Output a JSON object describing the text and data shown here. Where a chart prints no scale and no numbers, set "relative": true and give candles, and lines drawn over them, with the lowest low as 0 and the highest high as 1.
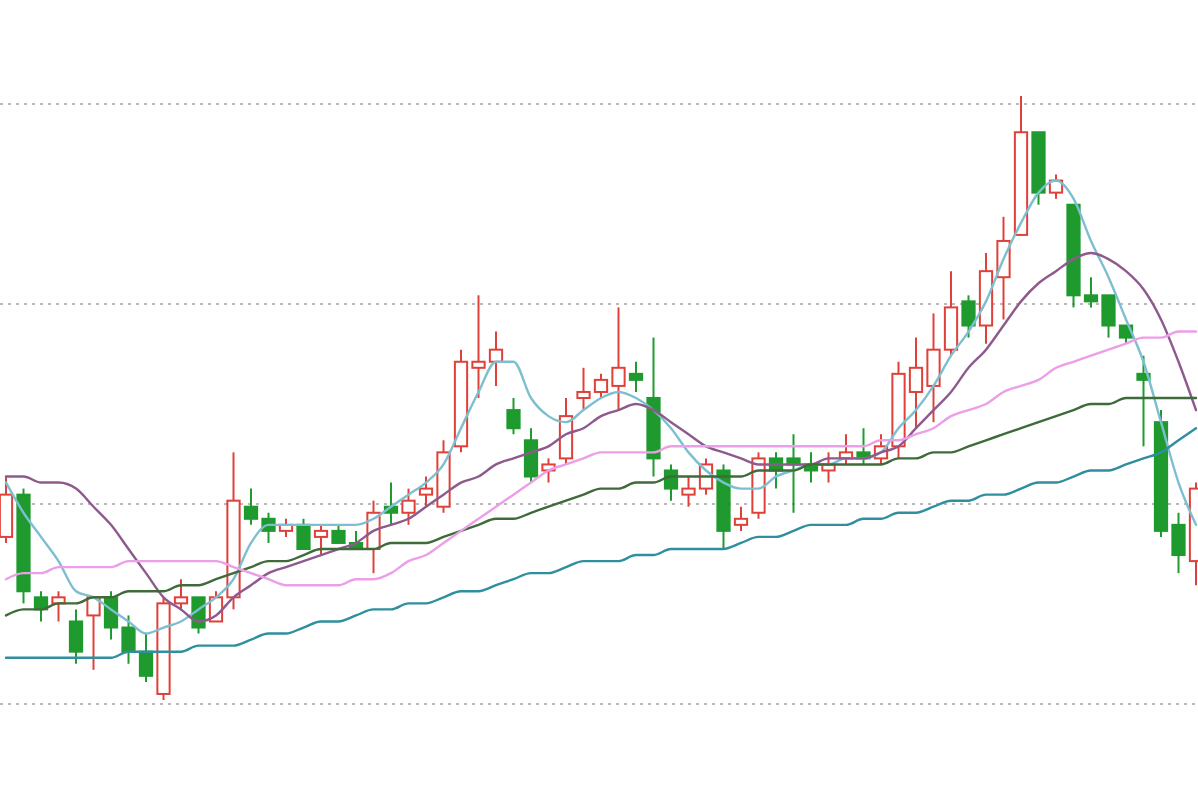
{
  "chart_data": {
    "type": "candlestick",
    "relative": true,
    "grid": true,
    "categories": [
      null,
      null,
      null,
      null,
      null,
      null,
      null,
      null,
      null,
      null,
      null,
      null,
      null,
      null,
      null,
      null,
      null,
      null,
      null,
      null,
      null,
      null,
      null,
      null,
      null,
      null,
      null,
      null,
      null,
      null,
      null,
      null,
      null,
      null,
      null,
      null,
      null,
      null,
      null,
      null,
      null,
      null,
      null,
      null,
      null,
      null,
      null,
      null,
      null,
      null,
      null,
      null,
      null,
      null,
      null,
      null,
      null,
      null,
      null,
      null,
      null,
      null,
      null,
      null,
      null,
      null,
      null,
      null,
      null
    ],
    "colors": [
      "#e0403a",
      "#1f9a2e",
      "#1f9a2e",
      "#e0403a",
      "#1f9a2e",
      "#e0403a",
      "#1f9a2e",
      "#1f9a2e",
      "#1f9a2e",
      "#e0403a",
      "#e0403a",
      "#1f9a2e",
      "#e0403a",
      "#e0403a",
      "#1f9a2e",
      "#1f9a2e",
      "#e0403a",
      "#1f9a2e",
      "#e0403a",
      "#1f9a2e",
      "#1f9a2e",
      "#e0403a",
      "#1f9a2e",
      "#e0403a",
      "#e0403a",
      "#e0403a",
      "#e0403a",
      "#e0403a",
      "#e0403a",
      "#1f9a2e",
      "#1f9a2e",
      "#e0403a",
      "#e0403a",
      "#e0403a",
      "#e0403a",
      "#e0403a",
      "#1f9a2e",
      "#1f9a2e",
      "#1f9a2e",
      "#e0403a",
      "#e0403a",
      "#1f9a2e",
      "#e0403a",
      "#e0403a",
      "#1f9a2e",
      "#1f9a2e",
      "#1f9a2e",
      "#e0403a",
      "#e0403a",
      "#1f9a2e",
      "#e0403a",
      "#e0403a",
      "#e0403a",
      "#e0403a",
      "#e0403a",
      "#1f9a2e",
      "#e0403a",
      "#e0403a",
      "#e0403a",
      "#1f9a2e",
      "#e0403a",
      "#1f9a2e",
      "#1f9a2e",
      "#1f9a2e",
      "#1f9a2e",
      "#1f9a2e",
      "#1f9a2e",
      "#1f9a2e",
      "#e0403a"
    ],
    "ohlc": [
      [
        0.27,
        0.37,
        0.26,
        0.34
      ],
      [
        0.34,
        0.35,
        0.16,
        0.18
      ],
      [
        0.17,
        0.18,
        0.13,
        0.15
      ],
      [
        0.16,
        0.18,
        0.13,
        0.17
      ],
      [
        0.13,
        0.15,
        0.06,
        0.08
      ],
      [
        0.14,
        0.17,
        0.05,
        0.17
      ],
      [
        0.17,
        0.18,
        0.1,
        0.12
      ],
      [
        0.12,
        0.14,
        0.06,
        0.08
      ],
      [
        0.08,
        0.11,
        0.03,
        0.04
      ],
      [
        0.01,
        0.17,
        0,
        0.16
      ],
      [
        0.16,
        0.2,
        0.15,
        0.17
      ],
      [
        0.17,
        0.17,
        0.11,
        0.12
      ],
      [
        0.13,
        0.18,
        0.13,
        0.17
      ],
      [
        0.17,
        0.41,
        0.15,
        0.33
      ],
      [
        0.32,
        0.35,
        0.29,
        0.3
      ],
      [
        0.3,
        0.31,
        0.26,
        0.28
      ],
      [
        0.28,
        0.3,
        0.27,
        0.29
      ],
      [
        0.29,
        0.3,
        0.25,
        0.25
      ],
      [
        0.27,
        0.29,
        0.24,
        0.28
      ],
      [
        0.28,
        0.29,
        0.26,
        0.26
      ],
      [
        0.26,
        0.28,
        0.25,
        0.25
      ],
      [
        0.25,
        0.33,
        0.21,
        0.31
      ],
      [
        0.32,
        0.36,
        0.29,
        0.31
      ],
      [
        0.31,
        0.35,
        0.29,
        0.33
      ],
      [
        0.34,
        0.37,
        0.32,
        0.35
      ],
      [
        0.32,
        0.43,
        0.31,
        0.41
      ],
      [
        0.42,
        0.58,
        0.41,
        0.56
      ],
      [
        0.55,
        0.67,
        0.5,
        0.56
      ],
      [
        0.56,
        0.61,
        0.52,
        0.58
      ],
      [
        0.48,
        0.5,
        0.44,
        0.45
      ],
      [
        0.43,
        0.45,
        0.36,
        0.37
      ],
      [
        0.38,
        0.4,
        0.36,
        0.39
      ],
      [
        0.4,
        0.5,
        0.39,
        0.47
      ],
      [
        0.5,
        0.55,
        0.48,
        0.51
      ],
      [
        0.51,
        0.54,
        0.5,
        0.53
      ],
      [
        0.52,
        0.65,
        0.48,
        0.55
      ],
      [
        0.54,
        0.56,
        0.51,
        0.53
      ],
      [
        0.5,
        0.6,
        0.37,
        0.4
      ],
      [
        0.38,
        0.39,
        0.33,
        0.35
      ],
      [
        0.34,
        0.37,
        0.32,
        0.35
      ],
      [
        0.35,
        0.4,
        0.34,
        0.39
      ],
      [
        0.38,
        0.39,
        0.25,
        0.28
      ],
      [
        0.29,
        0.32,
        0.28,
        0.3
      ],
      [
        0.31,
        0.41,
        0.3,
        0.4
      ],
      [
        0.4,
        0.41,
        0.35,
        0.38
      ],
      [
        0.4,
        0.44,
        0.31,
        0.39
      ],
      [
        0.39,
        0.41,
        0.36,
        0.38
      ],
      [
        0.38,
        0.41,
        0.36,
        0.39
      ],
      [
        0.4,
        0.44,
        0.39,
        0.41
      ],
      [
        0.41,
        0.45,
        0.39,
        0.4
      ],
      [
        0.4,
        0.44,
        0.39,
        0.42
      ],
      [
        0.42,
        0.56,
        0.4,
        0.54
      ],
      [
        0.51,
        0.6,
        0.45,
        0.55
      ],
      [
        0.52,
        0.64,
        0.46,
        0.58
      ],
      [
        0.58,
        0.71,
        0.57,
        0.65
      ],
      [
        0.66,
        0.67,
        0.6,
        0.62
      ],
      [
        0.62,
        0.74,
        0.59,
        0.71
      ],
      [
        0.7,
        0.8,
        0.63,
        0.76
      ],
      [
        0.77,
        1,
        0.77,
        0.94
      ],
      [
        0.94,
        0.94,
        0.82,
        0.84
      ],
      [
        0.84,
        0.87,
        0.83,
        0.86
      ],
      [
        0.82,
        0.82,
        0.65,
        0.67
      ],
      [
        0.67,
        0.7,
        0.65,
        0.66
      ],
      [
        0.67,
        0.67,
        0.6,
        0.62
      ],
      [
        0.62,
        0.62,
        0.59,
        0.6
      ],
      [
        0.54,
        0.57,
        0.42,
        0.53
      ],
      [
        0.46,
        0.48,
        0.27,
        0.28
      ],
      [
        0.29,
        0.31,
        0.21,
        0.24
      ],
      [
        0.23,
        0.36,
        0.19,
        0.35
      ]
    ],
    "series": [
      {
        "type": "line",
        "color": "#7dbfd0",
        "values": [
          0.36,
          0.31,
          0.27,
          0.23,
          0.18,
          0.17,
          0.15,
          0.13,
          0.11,
          0.12,
          0.13,
          0.15,
          0.17,
          0.2,
          0.26,
          0.29,
          0.29,
          0.29,
          0.29,
          0.29,
          0.29,
          0.3,
          0.32,
          0.34,
          0.36,
          0.39,
          0.45,
          0.51,
          0.56,
          0.56,
          0.5,
          0.47,
          0.46,
          0.48,
          0.5,
          0.51,
          0.5,
          0.48,
          0.45,
          0.41,
          0.38,
          0.36,
          0.35,
          0.35,
          0.37,
          0.38,
          0.39,
          0.39,
          0.4,
          0.4,
          0.41,
          0.45,
          0.48,
          0.52,
          0.57,
          0.61,
          0.66,
          0.73,
          0.79,
          0.84,
          0.86,
          0.83,
          0.76,
          0.7,
          0.63,
          0.56,
          0.46,
          0.36,
          0.29
        ]
      },
      {
        "type": "line",
        "color": "#8e5a8e",
        "values": [
          0.37,
          0.37,
          0.36,
          0.36,
          0.35,
          0.32,
          0.29,
          0.25,
          0.21,
          0.17,
          0.15,
          0.13,
          0.14,
          0.17,
          0.19,
          0.21,
          0.22,
          0.23,
          0.24,
          0.25,
          0.26,
          0.28,
          0.29,
          0.3,
          0.32,
          0.34,
          0.36,
          0.37,
          0.39,
          0.4,
          0.41,
          0.42,
          0.44,
          0.45,
          0.47,
          0.48,
          0.49,
          0.48,
          0.46,
          0.44,
          0.42,
          0.41,
          0.4,
          0.39,
          0.39,
          0.39,
          0.39,
          0.4,
          0.4,
          0.4,
          0.41,
          0.42,
          0.45,
          0.48,
          0.51,
          0.55,
          0.58,
          0.62,
          0.66,
          0.69,
          0.71,
          0.73,
          0.74,
          0.73,
          0.71,
          0.68,
          0.63,
          0.56,
          0.48
        ]
      },
      {
        "type": "line",
        "color": "#3f6b3a",
        "values": [
          0.14,
          0.15,
          0.15,
          0.16,
          0.16,
          0.17,
          0.17,
          0.18,
          0.18,
          0.18,
          0.19,
          0.19,
          0.2,
          0.21,
          0.22,
          0.23,
          0.23,
          0.24,
          0.25,
          0.25,
          0.25,
          0.25,
          0.26,
          0.26,
          0.26,
          0.27,
          0.28,
          0.29,
          0.3,
          0.3,
          0.31,
          0.32,
          0.33,
          0.34,
          0.35,
          0.35,
          0.36,
          0.36,
          0.37,
          0.37,
          0.37,
          0.37,
          0.37,
          0.38,
          0.38,
          0.38,
          0.39,
          0.39,
          0.39,
          0.39,
          0.39,
          0.4,
          0.4,
          0.41,
          0.41,
          0.42,
          0.43,
          0.44,
          0.45,
          0.46,
          0.47,
          0.48,
          0.49,
          0.49,
          0.5,
          0.5,
          0.5,
          0.5,
          0.5
        ]
      },
      {
        "type": "line",
        "color": "#ec9ee8",
        "values": [
          0.2,
          0.21,
          0.21,
          0.22,
          0.22,
          0.22,
          0.22,
          0.23,
          0.23,
          0.23,
          0.23,
          0.23,
          0.23,
          0.22,
          0.21,
          0.2,
          0.19,
          0.19,
          0.19,
          0.19,
          0.2,
          0.2,
          0.21,
          0.23,
          0.24,
          0.26,
          0.28,
          0.3,
          0.32,
          0.34,
          0.36,
          0.38,
          0.39,
          0.4,
          0.41,
          0.41,
          0.41,
          0.41,
          0.42,
          0.42,
          0.42,
          0.42,
          0.42,
          0.42,
          0.42,
          0.42,
          0.42,
          0.42,
          0.42,
          0.42,
          0.43,
          0.43,
          0.44,
          0.45,
          0.47,
          0.48,
          0.49,
          0.51,
          0.52,
          0.53,
          0.55,
          0.56,
          0.57,
          0.58,
          0.59,
          0.6,
          0.6,
          0.61,
          0.61
        ]
      },
      {
        "type": "line",
        "color": "#2f8f9f",
        "values": [
          0.07,
          0.07,
          0.07,
          0.07,
          0.07,
          0.07,
          0.07,
          0.08,
          0.08,
          0.08,
          0.08,
          0.09,
          0.09,
          0.09,
          0.1,
          0.11,
          0.11,
          0.12,
          0.13,
          0.13,
          0.14,
          0.15,
          0.15,
          0.16,
          0.16,
          0.17,
          0.18,
          0.18,
          0.19,
          0.2,
          0.21,
          0.21,
          0.22,
          0.23,
          0.23,
          0.23,
          0.24,
          0.24,
          0.25,
          0.25,
          0.25,
          0.25,
          0.26,
          0.27,
          0.27,
          0.28,
          0.29,
          0.29,
          0.29,
          0.3,
          0.3,
          0.31,
          0.31,
          0.32,
          0.33,
          0.33,
          0.34,
          0.34,
          0.35,
          0.36,
          0.36,
          0.37,
          0.38,
          0.38,
          0.39,
          0.4,
          0.41,
          0.43,
          0.45
        ]
      }
    ]
  }
}
